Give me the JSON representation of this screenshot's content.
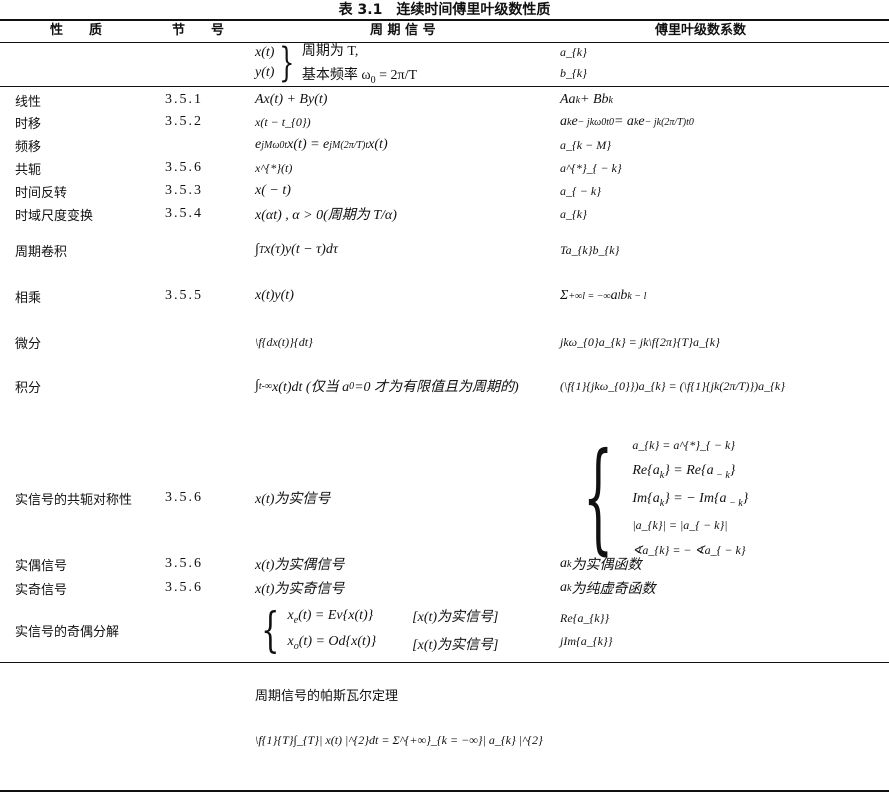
{
  "title": "表 3.1　连续时间傅里叶级数性质",
  "headers": {
    "property": "性　　质",
    "section": "节　　号",
    "signal": "周 期 信 号",
    "coefficients": "傅里叶级数系数"
  },
  "intro": {
    "signals": [
      "x(t)",
      "y(t)"
    ],
    "notes": [
      "周期为 T,",
      "基本频率 ω_{0} = 2π/T"
    ],
    "coefficients": [
      "a_{k}",
      "b_{k}"
    ]
  },
  "rows": [
    {
      "property": "线性",
      "section": "3.5.1",
      "signal": "Ax(t) + By(t)",
      "coefficient": "Aa_{k} + Bb_{k}"
    },
    {
      "property": "时移",
      "section": "3.5.2",
      "signal": "x(t − t_{0})",
      "coefficient": "a_{k}e^{ − jkω0t0} = a_{k}e^{ − jk(2π/T)t0}"
    },
    {
      "property": "频移",
      "section": "",
      "signal": "e^{jMω0t}x(t) = e^{jM(2π/T)t}x(t)",
      "coefficient": "a_{k − M}"
    },
    {
      "property": "共轭",
      "section": "3.5.6",
      "signal": "x^{*}(t)",
      "coefficient": "a^{*}_{ − k}"
    },
    {
      "property": "时间反转",
      "section": "3.5.3",
      "signal": "x( − t)",
      "coefficient": "a_{ − k}"
    },
    {
      "property": "时域尺度变换",
      "section": "3.5.4",
      "signal": "x(αt) , α > 0(周期为 T/α)",
      "coefficient": "a_{k}"
    },
    {
      "property": "周期卷积",
      "section": "",
      "signal": "∫_{T}x(τ)y(t − τ)dτ",
      "coefficient": "Ta_{k}b_{k}"
    },
    {
      "property": "相乘",
      "section": "3.5.5",
      "signal": "x(t)y(t)",
      "coefficient": "Σ^{+∞}_{l = −∞} a_{l}b_{k − l}"
    },
    {
      "property": "微分",
      "section": "",
      "signal": "\\f{dx(t)}{dt}",
      "coefficient": "jkω_{0}a_{k} = jk\\f{2π}{T}a_{k}"
    },
    {
      "property": "积分",
      "section": "",
      "signal": "∫^{t}_{-∞}x(t)dt (仅当 a_{0} =0 才为有限值且为周期的)",
      "coefficient": "(\\f{1}{jkω_{0}})a_{k} = (\\f{1}{jk(2π/T)})a_{k}"
    }
  ],
  "conjugate_symmetry": {
    "property": "实信号的共轭对称性",
    "section": "3.5.6",
    "signal": "x(t)为实信号",
    "coefficients": [
      "a_{k} = a^{*}_{ − k}",
      "Re{a_{k}} = Re{a_{ − k}}",
      "Im{a_{k}} = − Im{a_{ − k}}",
      "|a_{k}| = |a_{ − k}|",
      "∢a_{k} = − ∢a_{ − k}"
    ]
  },
  "real_even": {
    "property": "实偶信号",
    "section": "3.5.6",
    "signal": "x(t)为实偶信号",
    "coefficient": "a_{k} 为实偶函数"
  },
  "real_odd": {
    "property": "实奇信号",
    "section": "3.5.6",
    "signal": "x(t)为实奇信号",
    "coefficient": "a_{k} 为纯虚奇函数"
  },
  "even_odd": {
    "property": "实信号的奇偶分解",
    "section": "",
    "signals": [
      "x_{e}(t) = Ev{x(t)}",
      "x_{o}(t) = Od{x(t)}"
    ],
    "conditions": [
      "[x(t)为实信号]",
      "[x(t)为实信号]"
    ],
    "coefficients": [
      "Re{a_{k}}",
      "jIm{a_{k}}"
    ]
  },
  "parseval": {
    "title": "周期信号的帕斯瓦尔定理",
    "formula": "\\f{1}{T}∫_{T}| x(t) |^{2}dt = Σ^{+∞}_{k = −∞}| a_{k} |^{2}"
  }
}
